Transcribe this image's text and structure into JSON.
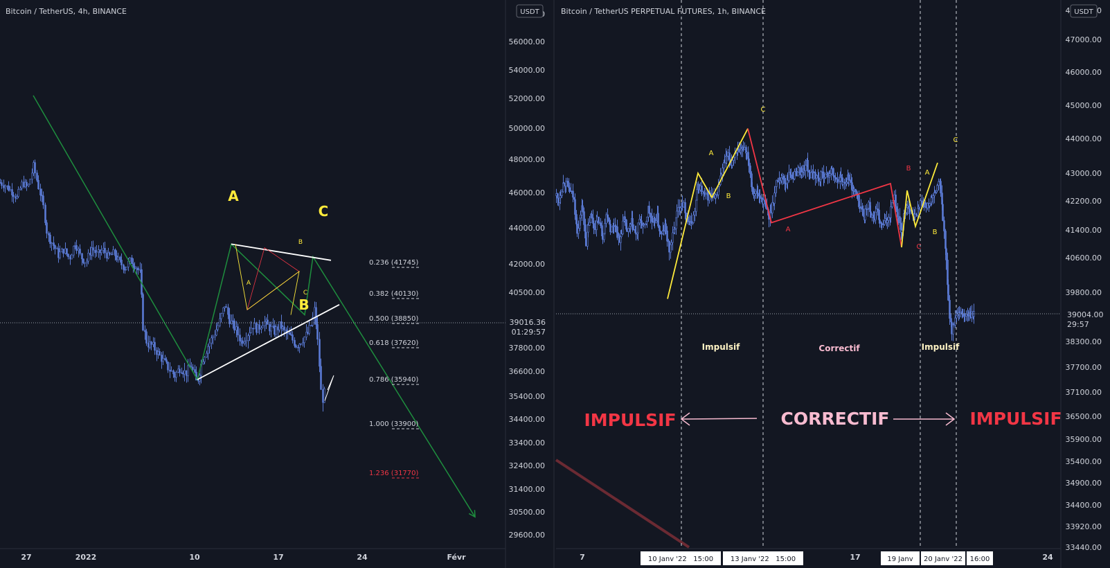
{
  "colors": {
    "background": "#131722",
    "axis_text": "#d1d4dc",
    "candle": "#5b7bd5",
    "zigzag_green": "#1e8e3e",
    "trend_white": "#ffffff",
    "wave_yellow": "#ffeb3b",
    "wave_red": "#f23645",
    "pink": "#f8bbd0",
    "fib_red": "#f23645"
  },
  "chart_data": [
    {
      "type": "candlestick",
      "title": "Bitcoin / TetherUS, 4h, BINANCE",
      "currency_badge": "USDT",
      "x_ticks": [
        "27",
        "2022",
        "10",
        "17",
        "24",
        "Févr"
      ],
      "y_ticks": [
        "5…0",
        "56000.00",
        "54000.00",
        "52000.00",
        "50000.00",
        "48000.00",
        "46000.00",
        "44000.00",
        "42000.00",
        "40500.00",
        "37800.00",
        "36600.00",
        "35400.00",
        "34400.00",
        "33400.00",
        "32400.00",
        "31400.00",
        "30500.00",
        "29600.00"
      ],
      "last_price": "39016.36",
      "countdown": "01:29:57",
      "fib_levels": [
        {
          "label": "0.236 (41745)",
          "ratio": 0.236,
          "price": 41745
        },
        {
          "label": "0.382 (40130)",
          "ratio": 0.382,
          "price": 40130
        },
        {
          "label": "0.500 (38850)",
          "ratio": 0.5,
          "price": 38850
        },
        {
          "label": "0.618 (37620)",
          "ratio": 0.618,
          "price": 37620
        },
        {
          "label": "0.786 (35940)",
          "ratio": 0.786,
          "price": 35940
        },
        {
          "label": "1.000 (33900)",
          "ratio": 1.0,
          "price": 33900
        },
        {
          "label": "1.236 (31770)",
          "ratio": 1.236,
          "price": 31770
        }
      ],
      "wave_labels_big": [
        "A",
        "B",
        "C"
      ],
      "wave_labels_small": [
        "A",
        "B",
        "C"
      ],
      "price_path": [
        [
          0,
          46600
        ],
        [
          8,
          46400
        ],
        [
          16,
          46100
        ],
        [
          24,
          45700
        ],
        [
          32,
          46600
        ],
        [
          40,
          46300
        ],
        [
          48,
          47600
        ],
        [
          56,
          46200
        ],
        [
          62,
          45300
        ],
        [
          68,
          43600
        ],
        [
          76,
          43100
        ],
        [
          84,
          42500
        ],
        [
          92,
          42800
        ],
        [
          100,
          42300
        ],
        [
          108,
          43200
        ],
        [
          116,
          42400
        ],
        [
          124,
          42100
        ],
        [
          132,
          42900
        ],
        [
          140,
          42500
        ],
        [
          148,
          42800
        ],
        [
          156,
          42400
        ],
        [
          164,
          42600
        ],
        [
          172,
          42100
        ],
        [
          180,
          41800
        ],
        [
          188,
          42200
        ],
        [
          196,
          41900
        ],
        [
          202,
          41500
        ],
        [
          206,
          38900
        ],
        [
          212,
          38000
        ],
        [
          220,
          37900
        ],
        [
          228,
          37500
        ],
        [
          236,
          37100
        ],
        [
          244,
          36700
        ],
        [
          252,
          36400
        ],
        [
          260,
          36800
        ],
        [
          268,
          36500
        ],
        [
          276,
          36900
        ],
        [
          284,
          36000
        ],
        [
          292,
          37200
        ],
        [
          300,
          37900
        ],
        [
          308,
          38400
        ],
        [
          316,
          39000
        ],
        [
          324,
          39900
        ],
        [
          332,
          39100
        ],
        [
          340,
          38700
        ],
        [
          348,
          38100
        ],
        [
          356,
          38400
        ],
        [
          364,
          38900
        ],
        [
          372,
          38700
        ],
        [
          380,
          39100
        ],
        [
          388,
          38800
        ],
        [
          396,
          38600
        ],
        [
          404,
          38900
        ],
        [
          412,
          38500
        ],
        [
          420,
          38300
        ],
        [
          428,
          37900
        ],
        [
          436,
          38200
        ],
        [
          444,
          38500
        ],
        [
          450,
          39000
        ],
        [
          454,
          39700
        ],
        [
          458,
          38300
        ],
        [
          461,
          36800
        ],
        [
          464,
          35200
        ],
        [
          467,
          35400
        ],
        [
          470,
          35800
        ]
      ],
      "zigzag_path": [
        [
          48,
          52200
        ],
        [
          285,
          36200
        ],
        [
          334,
          43100
        ],
        [
          440,
          39400
        ],
        [
          452,
          42400
        ],
        [
          686,
          30300
        ]
      ],
      "triangle_upper": [
        [
          334,
          43100
        ],
        [
          478,
          42200
        ]
      ],
      "triangle_lower": [
        [
          285,
          36200
        ],
        [
          490,
          39900
        ]
      ]
    },
    {
      "type": "candlestick",
      "title": "Bitcoin / TetherUS PERPETUAL FUTURES, 1h, BINANCE",
      "currency_badge": "USDT",
      "x_ticks": [
        "7",
        "17",
        "24"
      ],
      "date_badges": [
        "10 Janv '22   15:00",
        "13 Janv '22   15:00",
        "19 Janv",
        "20 Janv '22",
        "16:00"
      ],
      "y_ticks": [
        "48000.00",
        "47000.00",
        "46000.00",
        "45000.00",
        "44000.00",
        "43000.00",
        "42200.00",
        "41400.00",
        "40600.00",
        "39800.00",
        "38300.00",
        "37700.00",
        "37100.00",
        "36500.00",
        "35900.00",
        "35400.00",
        "34900.00",
        "34400.00",
        "33920.00",
        "33440.00"
      ],
      "last_price": "39004.00",
      "countdown": "29:57",
      "phase_labels": [
        "Impulsif",
        "Correctif",
        "Impulsif"
      ],
      "phase_big_labels": [
        "IMPULSIF",
        "CORRECTIF",
        "IMPULSIF"
      ],
      "wave_letters": [
        "A",
        "B",
        "C",
        "A",
        "B",
        "C",
        "A",
        "B",
        "C"
      ],
      "price_path": [
        [
          790,
          42900
        ],
        [
          798,
          42600
        ],
        [
          806,
          42200
        ],
        [
          814,
          42800
        ],
        [
          822,
          42500
        ],
        [
          828,
          42300
        ],
        [
          834,
          41300
        ],
        [
          840,
          42100
        ],
        [
          846,
          41000
        ],
        [
          852,
          41800
        ],
        [
          858,
          41500
        ],
        [
          864,
          41700
        ],
        [
          870,
          41200
        ],
        [
          876,
          41900
        ],
        [
          882,
          41400
        ],
        [
          888,
          41600
        ],
        [
          894,
          41000
        ],
        [
          900,
          41700
        ],
        [
          906,
          41300
        ],
        [
          912,
          41600
        ],
        [
          918,
          41200
        ],
        [
          924,
          41700
        ],
        [
          930,
          41400
        ],
        [
          936,
          42000
        ],
        [
          942,
          41500
        ],
        [
          948,
          41800
        ],
        [
          954,
          41200
        ],
        [
          960,
          41500
        ],
        [
          966,
          40800
        ],
        [
          972,
          41300
        ],
        [
          978,
          41900
        ],
        [
          984,
          42200
        ],
        [
          990,
          41900
        ],
        [
          996,
          41500
        ],
        [
          1002,
          41800
        ],
        [
          1008,
          42700
        ],
        [
          1014,
          42400
        ],
        [
          1020,
          42300
        ],
        [
          1026,
          42400
        ],
        [
          1032,
          42200
        ],
        [
          1038,
          42700
        ],
        [
          1044,
          43200
        ],
        [
          1050,
          43500
        ],
        [
          1056,
          43300
        ],
        [
          1062,
          43700
        ],
        [
          1068,
          43500
        ],
        [
          1074,
          43800
        ],
        [
          1080,
          43500
        ],
        [
          1086,
          42500
        ],
        [
          1092,
          42400
        ],
        [
          1098,
          42300
        ],
        [
          1104,
          42100
        ],
        [
          1110,
          41700
        ],
        [
          1116,
          42200
        ],
        [
          1122,
          42800
        ],
        [
          1128,
          42900
        ],
        [
          1134,
          42700
        ],
        [
          1140,
          43000
        ],
        [
          1146,
          42900
        ],
        [
          1152,
          43100
        ],
        [
          1158,
          43000
        ],
        [
          1164,
          43300
        ],
        [
          1170,
          42900
        ],
        [
          1176,
          43000
        ],
        [
          1182,
          42800
        ],
        [
          1188,
          43000
        ],
        [
          1194,
          42900
        ],
        [
          1200,
          43100
        ],
        [
          1206,
          42800
        ],
        [
          1212,
          42900
        ],
        [
          1218,
          42700
        ],
        [
          1224,
          42900
        ],
        [
          1230,
          42600
        ],
        [
          1236,
          42400
        ],
        [
          1242,
          42000
        ],
        [
          1248,
          41800
        ],
        [
          1254,
          42100
        ],
        [
          1260,
          41700
        ],
        [
          1266,
          41900
        ],
        [
          1272,
          41500
        ],
        [
          1278,
          41600
        ],
        [
          1284,
          41800
        ],
        [
          1290,
          42400
        ],
        [
          1296,
          41800
        ],
        [
          1302,
          41300
        ],
        [
          1308,
          42100
        ],
        [
          1314,
          42000
        ],
        [
          1320,
          41700
        ],
        [
          1326,
          42000
        ],
        [
          1332,
          42200
        ],
        [
          1338,
          42000
        ],
        [
          1344,
          42200
        ],
        [
          1350,
          42400
        ],
        [
          1356,
          42800
        ],
        [
          1362,
          41600
        ],
        [
          1366,
          40500
        ],
        [
          1370,
          39300
        ],
        [
          1374,
          38600
        ],
        [
          1378,
          38900
        ],
        [
          1382,
          39100
        ]
      ],
      "yellow_wave_1": [
        [
          964,
          39600
        ],
        [
          1008,
          43000
        ],
        [
          1028,
          42300
        ],
        [
          1080,
          44300
        ]
      ],
      "red_wave": [
        [
          1080,
          44300
        ],
        [
          1114,
          41600
        ],
        [
          1286,
          42700
        ],
        [
          1302,
          40900
        ]
      ],
      "yellow_wave_2": [
        [
          1302,
          40900
        ],
        [
          1310,
          42500
        ],
        [
          1322,
          41500
        ],
        [
          1354,
          43300
        ]
      ]
    }
  ]
}
